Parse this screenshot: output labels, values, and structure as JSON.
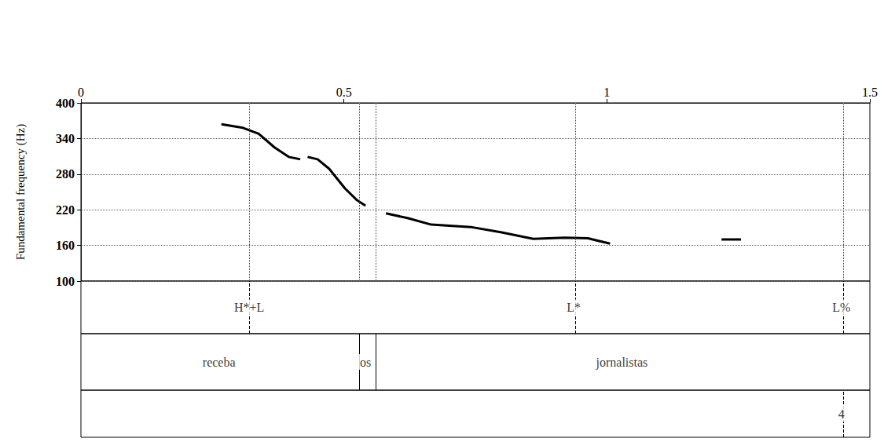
{
  "chart_data": {
    "type": "line",
    "ylabel": "Fundamental frequency (Hz)",
    "x": [
      0.267,
      0.308,
      0.338,
      0.368,
      0.395,
      0.417,
      0.424,
      0.431,
      0.45,
      0.472,
      0.502,
      0.525,
      0.541,
      0.56,
      0.58,
      0.621,
      0.666,
      0.741,
      0.8,
      0.86,
      0.92,
      0.964,
      1.006,
      1.1,
      1.218,
      1.255
    ],
    "values": [
      364,
      358,
      348,
      325,
      309,
      305,
      null,
      309,
      305,
      289,
      256,
      236,
      227,
      null,
      214,
      206,
      195,
      191,
      182,
      171,
      173,
      172,
      163,
      null,
      170,
      170
    ],
    "color": "#000000",
    "line_style": "solid",
    "xlim": [
      0,
      1.5
    ],
    "xticks": [
      0,
      0.5,
      1,
      1.5
    ],
    "ylim": [
      100,
      400
    ],
    "yticks": [
      100,
      160,
      220,
      280,
      340,
      400
    ],
    "grid": true,
    "tiers": [
      {
        "type": "point",
        "items": [
          {
            "time": 0.32,
            "label": "H*+L"
          },
          {
            "time": 0.937,
            "label": "L*"
          },
          {
            "time": 1.446,
            "label": "L%"
          }
        ]
      },
      {
        "type": "interval",
        "items": [
          {
            "start": 0,
            "end": 0.525,
            "label": "receba"
          },
          {
            "start": 0.525,
            "end": 0.557,
            "label": "os"
          },
          {
            "start": 0.557,
            "end": 1.5,
            "label": "jornalistas"
          }
        ]
      },
      {
        "type": "point",
        "items": [
          {
            "time": 1.446,
            "label": "4"
          }
        ]
      }
    ]
  }
}
